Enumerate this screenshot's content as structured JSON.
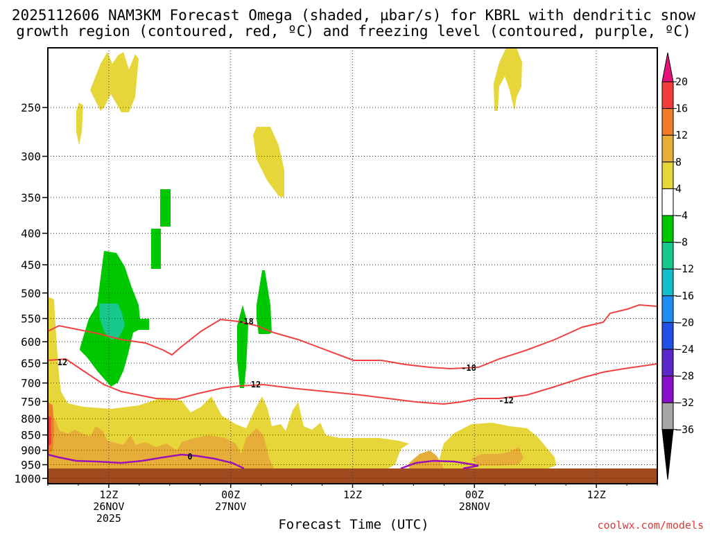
{
  "title_line1": "2025112606 NAM3KM Forecast Omega (shaded, µbar/s) for KBRL with dendritic snow",
  "title_line2": "growth region (contoured, red, ºC) and freezing level (contoured, purple, ºC)",
  "credit": "coolwx.com/models",
  "chart_data": {
    "type": "heatmap",
    "title": "2025112606 NAM3KM Forecast Omega (shaded, µbar/s) for KBRL with dendritic snow growth region (contoured, red, ºC) and freezing level (contoured, purple, ºC)",
    "xlabel": "Forecast Time (UTC)",
    "ylabel": "",
    "x_range": [
      "2025-11-26T06Z",
      "2025-11-28T18Z"
    ],
    "y_range_hpa": [
      1020,
      200
    ],
    "y_scale": "log-pressure",
    "grid": true,
    "y_ticks": [
      250,
      300,
      350,
      400,
      450,
      500,
      550,
      600,
      650,
      700,
      750,
      800,
      850,
      900,
      950,
      1000
    ],
    "x_ticks": [
      {
        "time": "2025-11-26T12Z",
        "label1": "12Z",
        "label2": "26NOV",
        "label3": "2025"
      },
      {
        "time": "2025-11-27T00Z",
        "label1": "00Z",
        "label2": "27NOV",
        "label3": ""
      },
      {
        "time": "2025-11-27T12Z",
        "label1": "12Z",
        "label2": "",
        "label3": ""
      },
      {
        "time": "2025-11-28T00Z",
        "label1": "00Z",
        "label2": "28NOV",
        "label3": ""
      },
      {
        "time": "2025-11-28T12Z",
        "label1": "12Z",
        "label2": "",
        "label3": ""
      }
    ],
    "colorbar": {
      "units": "µbar/s",
      "levels": [
        "20",
        "16",
        "12",
        "8",
        "4",
        "−4",
        "−8",
        "−12",
        "−16",
        "−20",
        "−24",
        "−28",
        "−32",
        "−36"
      ],
      "colors": [
        "#f03c3c",
        "#f07d2a",
        "#e6ae39",
        "#e6d63a",
        "#ffffff",
        "#00c800",
        "#18c88c",
        "#14bec8",
        "#1e8cf0",
        "#2050e6",
        "#5a28c8",
        "#8c10c8",
        "#a6a6a6"
      ],
      "top_arrow_color": "#e8107a",
      "bottom_arrow_color": "#000000"
    },
    "contours": [
      {
        "name": "dendritic snow growth region",
        "color": "#f04040",
        "levels": [
          -12,
          -18
        ],
        "labels": [
          {
            "value": "-18",
            "time": "2025-11-27T01Z",
            "p": 588
          },
          {
            "value": "-18",
            "time": "2025-11-28T00Z",
            "p": 690
          },
          {
            "value": "12",
            "time": "2025-11-26T07Z",
            "p": 680
          },
          {
            "value": "12",
            "time": "2025-11-27T02Z",
            "p": 740
          },
          {
            "value": "-12",
            "time": "2025-11-28T03Z",
            "p": 788
          }
        ]
      },
      {
        "name": "freezing level",
        "color": "#9a10b4",
        "levels": [
          0
        ],
        "labels": [
          {
            "value": "0",
            "time": "2025-11-26T21Z",
            "p": 958
          }
        ]
      }
    ],
    "surface_fill_color": "#a04a20"
  }
}
